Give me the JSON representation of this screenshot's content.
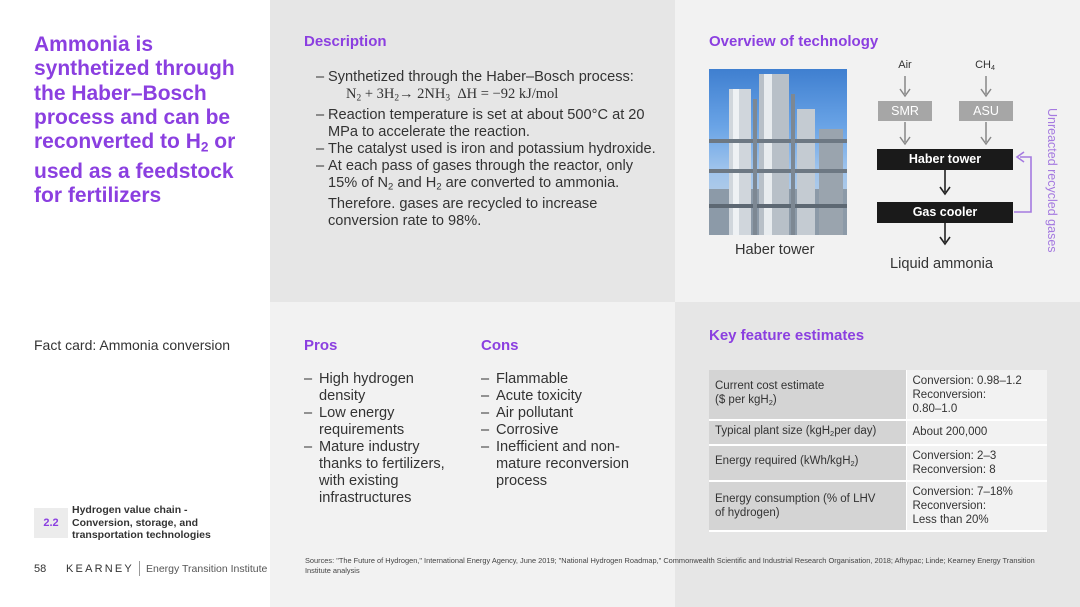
{
  "title": "Ammonia is synthetized through the Haber–Bosch process and can be reconverted to H2 or used as a feedstock for fertilizers",
  "fact_card": "Fact card: Ammonia conversion",
  "section": {
    "number": "2.2",
    "label": "Hydrogen value chain - Conversion, storage, and transportation technologies"
  },
  "footer": {
    "page": "58",
    "brand": "KEARNEY",
    "institute": "Energy Transition Institute"
  },
  "description": {
    "heading": "Description",
    "items": [
      "Synthetized through the Haber–Bosch process:",
      "Reaction temperature is set at about 500°C at 20 MPa to accelerate the reaction.",
      "The catalyst used is iron and potassium hydroxide."
    ],
    "formula": "N2 + 3H2 → 2NH3 ΔH = −92 kJ/mol",
    "item4_pre": "At each pass of gases through the reactor, only 15% of N",
    "item4_mid": " and H",
    "item4_post": " are converted to ammonia. Therefore. gases are recycled to increase conversion rate to 98%.",
    "sub2": "2"
  },
  "overview": {
    "heading": "Overview of technology",
    "photo_caption": "Haber tower",
    "inputs": [
      "Air",
      "CH4"
    ],
    "boxes": {
      "smr": "SMR",
      "asu": "ASU",
      "haber": "Haber tower",
      "cooler": "Gas cooler"
    },
    "output": "Liquid ammonia",
    "recycle": "Unreacted recycled gases"
  },
  "pros": {
    "heading": "Pros",
    "items": [
      "High hydrogen density",
      "Low energy requirements",
      "Mature industry thanks to fertilizers, with existing infrastructures"
    ]
  },
  "cons": {
    "heading": "Cons",
    "items": [
      "Flammable",
      "Acute toxicity",
      "Air pollutant",
      "Corrosive",
      "Inefficient and non-mature reconversion process"
    ]
  },
  "key_features": {
    "heading": "Key feature estimates",
    "rows": [
      {
        "key": "Current cost estimate ($ per kgH2)",
        "value": "Conversion: 0.98–1.2 Reconversion: 0.80–1.0"
      },
      {
        "key": "Typical plant size (kgH2per day)",
        "value": "About 200,000"
      },
      {
        "key": "Energy required (kWh/kgH2)",
        "value": "Conversion: 2–3 Reconversion: 8"
      },
      {
        "key": "Energy consumption (% of LHV of hydrogen)",
        "value": "Conversion: 7–18% Reconversion: Less than 20%"
      }
    ]
  },
  "sources": "Sources: \"The Future of Hydrogen,\" International Energy Agency, June 2019; \"National Hydrogen Roadmap,\" Commonwealth Scientific and Industrial Research Organisation, 2018; Afhypac; Linde; Kearney Energy Transition Institute analysis",
  "colors": {
    "accent": "#8b3fe0",
    "recycle": "#a57ae0",
    "panel_light": "#f2f2f2",
    "panel_mid": "#e6e6e6"
  }
}
